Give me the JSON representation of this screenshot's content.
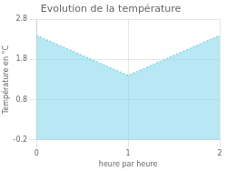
{
  "chart_data": {
    "type": "area",
    "title": "Evolution de la température",
    "xlabel": "heure par heure",
    "ylabel": "Température en °C",
    "x": [
      0,
      1,
      2
    ],
    "values": [
      2.4,
      1.4,
      2.4
    ],
    "color": "#88d8ec",
    "line_style": "dotted",
    "xlim": [
      0,
      2
    ],
    "ylim": [
      -0.2,
      2.8
    ],
    "xticks": [
      0,
      1,
      2
    ],
    "yticks": [
      -0.2,
      0.8,
      1.8,
      2.8
    ],
    "grid": true
  }
}
